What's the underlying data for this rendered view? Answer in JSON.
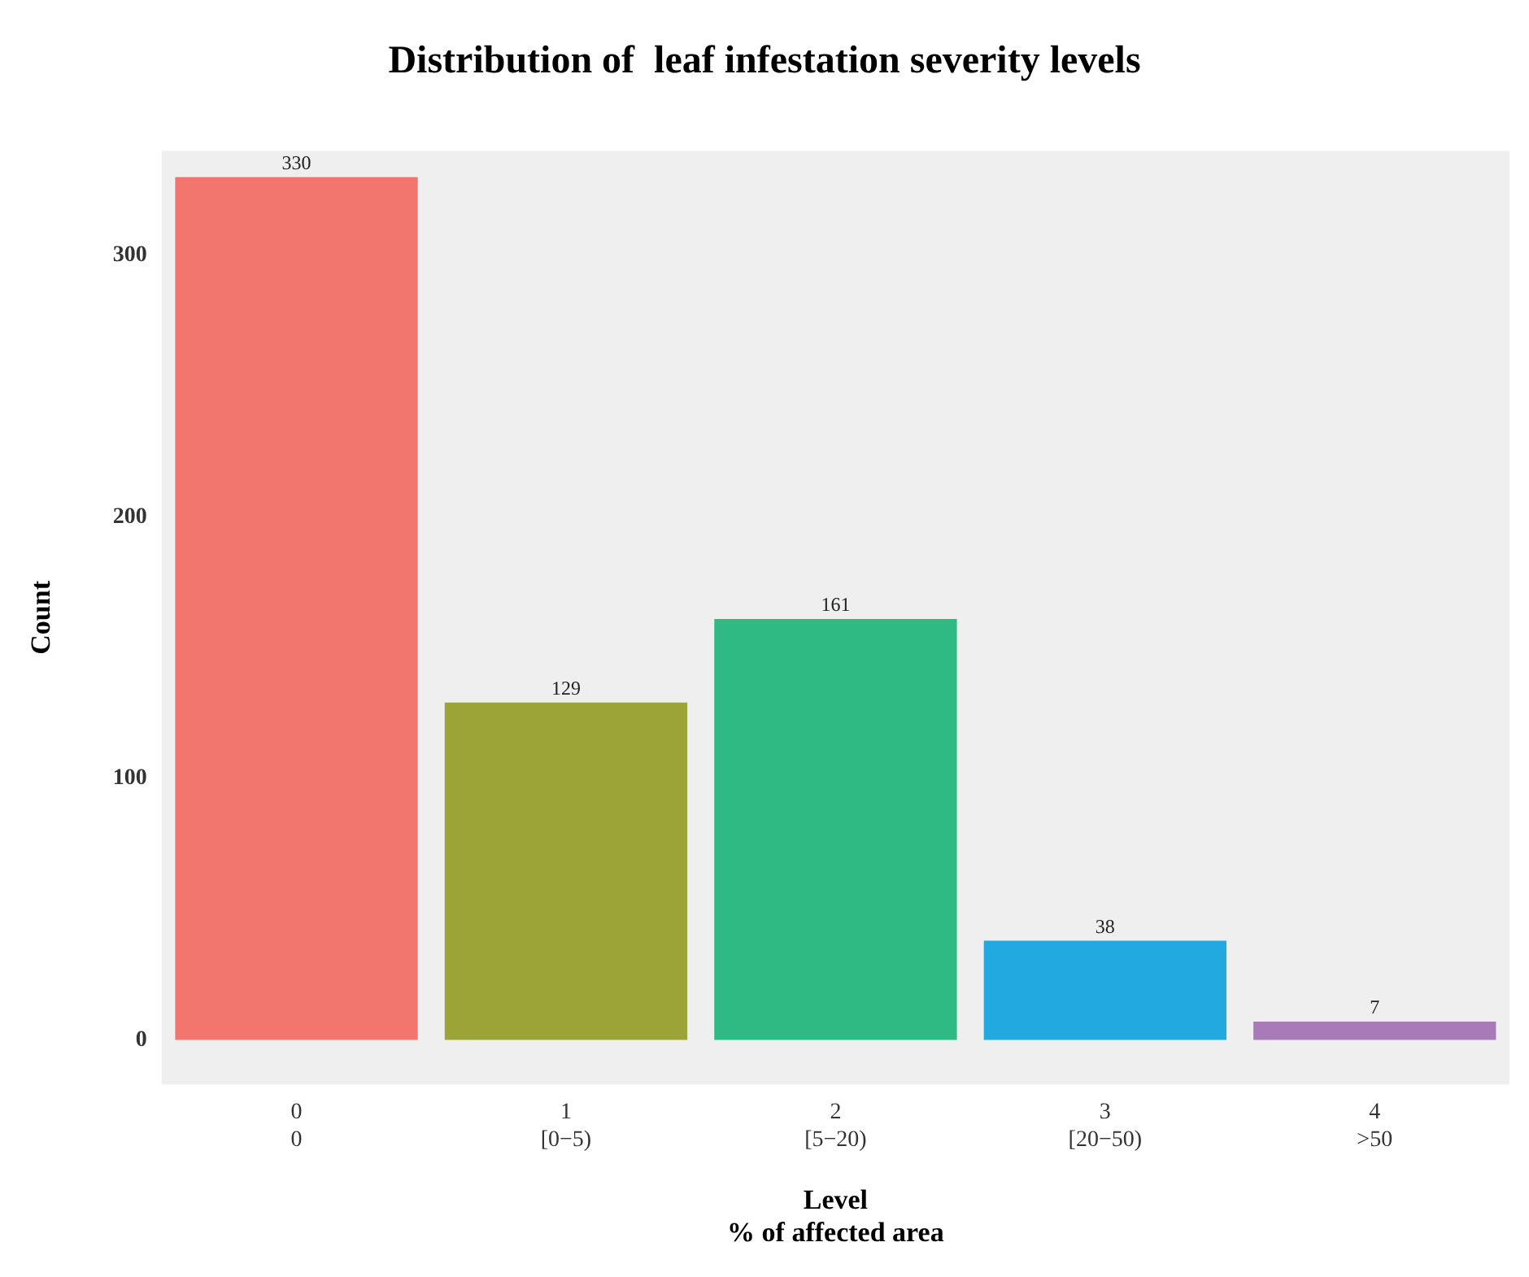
{
  "chart_data": {
    "type": "bar",
    "title": "Distribution of  leaf infestation severity levels",
    "xlabel": "Level\n% of affected area",
    "ylabel": "Count",
    "categories": [
      "0\n0",
      "1\n[0−5)",
      "2\n[5−20)",
      "3\n[20−50)",
      "4\n>50"
    ],
    "values": [
      330,
      129,
      161,
      38,
      7
    ],
    "colors": [
      "#f2766d",
      "#9ca337",
      "#2fba84",
      "#22a9e0",
      "#a97ab8"
    ],
    "ylim": [
      -17,
      340
    ],
    "yticks": [
      0,
      100,
      200,
      300
    ],
    "grid": false,
    "legend": false,
    "data_labels": true
  }
}
